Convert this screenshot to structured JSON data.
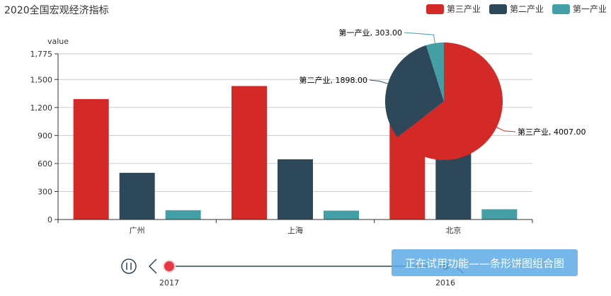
{
  "title": "2020全国宏观经济指标",
  "legend": [
    {
      "name": "第三产业",
      "color": "#d42a27"
    },
    {
      "name": "第二产业",
      "color": "#2d4858"
    },
    {
      "name": "第一产业",
      "color": "#439ea5"
    }
  ],
  "timeline": {
    "years": [
      "2017",
      "2016"
    ],
    "play_icon": "pause-icon",
    "prev_icon": "chevron-left-icon"
  },
  "banner": "正在试用功能——条形饼图组合图",
  "chart_data": [
    {
      "type": "bar",
      "categories": [
        "广州",
        "上海",
        "北京"
      ],
      "ylabel": "value",
      "ylim": [
        0,
        1775
      ],
      "yticks": [
        0,
        300,
        600,
        900,
        1200,
        1500,
        1775
      ],
      "ytick_labels": [
        "0",
        "300",
        "600",
        "900",
        "1,200",
        "1,500",
        "1,775"
      ],
      "grid": true,
      "series": [
        {
          "name": "第三产业",
          "values": [
            1290,
            1430,
            1250
          ],
          "color": "#d42a27"
        },
        {
          "name": "第二产业",
          "values": [
            500,
            645,
            810
          ],
          "color": "#2d4858"
        },
        {
          "name": "第一产业",
          "values": [
            100,
            95,
            110
          ],
          "color": "#439ea5"
        }
      ]
    },
    {
      "type": "pie",
      "slices": [
        {
          "name": "第三产业",
          "value": 4007,
          "label": "第三产业, 4007.00",
          "color": "#d42a27"
        },
        {
          "name": "第二产业",
          "value": 1898,
          "label": "第二产业, 1898.00",
          "color": "#2d4858"
        },
        {
          "name": "第一产业",
          "value": 303,
          "label": "第一产业, 303.00",
          "color": "#439ea5"
        }
      ]
    }
  ]
}
